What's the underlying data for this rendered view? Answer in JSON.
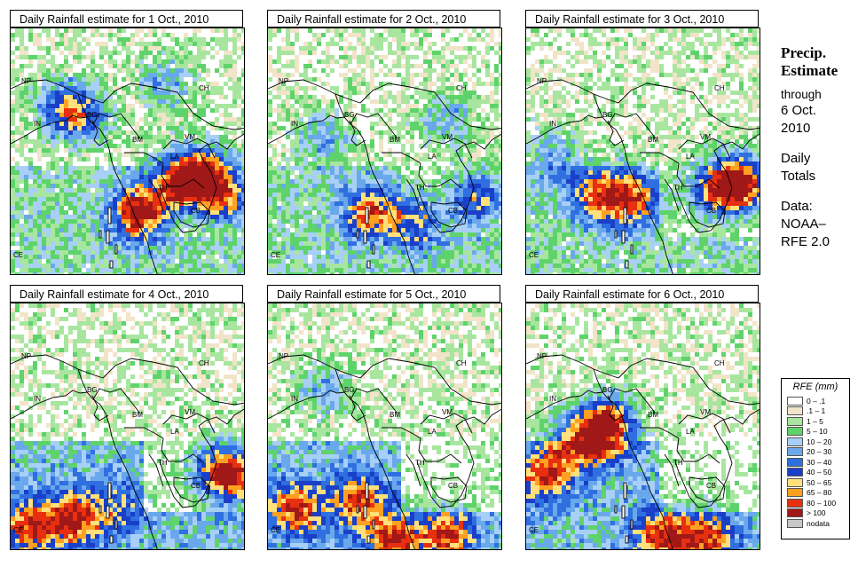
{
  "panels": [
    {
      "title": "Daily Rainfall estimate for  1 Oct., 2010",
      "date": "1 Oct. 2010",
      "seed": 11
    },
    {
      "title": "Daily Rainfall estimate for  2 Oct., 2010",
      "date": "2 Oct. 2010",
      "seed": 27
    },
    {
      "title": "Daily Rainfall estimate for  3 Oct., 2010",
      "date": "3 Oct. 2010",
      "seed": 43
    },
    {
      "title": "Daily Rainfall estimate for  4 Oct., 2010",
      "date": "4 Oct. 2010",
      "seed": 59
    },
    {
      "title": "Daily Rainfall estimate for  5 Oct., 2010",
      "date": "5 Oct. 2010",
      "seed": 71
    },
    {
      "title": "Daily Rainfall estimate for  6 Oct., 2010",
      "date": "6 Oct. 2010",
      "seed": 89
    }
  ],
  "map_labels": {
    "NP": "NP",
    "CH": "CH",
    "IN": "IN",
    "BG": "BG",
    "BM": "BM",
    "VM": "VM",
    "LA": "LA",
    "TH": "TH",
    "CB": "CB",
    "CE": "CE"
  },
  "side": {
    "heading_line1": "Precip.",
    "heading_line2": "Estimate",
    "through": "through",
    "date_line1": "6 Oct.",
    "date_line2": "2010",
    "daily1": "Daily",
    "daily2": "Totals",
    "data1": "Data:",
    "data2": "NOAA–",
    "data3": "RFE 2.0"
  },
  "legend": {
    "title": "RFE (mm)",
    "items": [
      {
        "label": "0 – .1",
        "color": "#ffffff"
      },
      {
        "label": ".1 – 1",
        "color": "#f2e4c8"
      },
      {
        "label": "1 – 5",
        "color": "#a8e6a0"
      },
      {
        "label": "5 – 10",
        "color": "#5fd36b"
      },
      {
        "label": "10 – 20",
        "color": "#a8cff5"
      },
      {
        "label": "20 – 30",
        "color": "#6aa8ec"
      },
      {
        "label": "30 – 40",
        "color": "#2f6fe0"
      },
      {
        "label": "40 – 50",
        "color": "#1a3fc8"
      },
      {
        "label": "50 – 65",
        "color": "#ffe07a"
      },
      {
        "label": "65 – 80",
        "color": "#ffa020"
      },
      {
        "label": "80 – 100",
        "color": "#e83010"
      },
      {
        "label": "> 100",
        "color": "#a01818"
      },
      {
        "label": "nodata",
        "color": "#c8c8c8"
      }
    ]
  }
}
